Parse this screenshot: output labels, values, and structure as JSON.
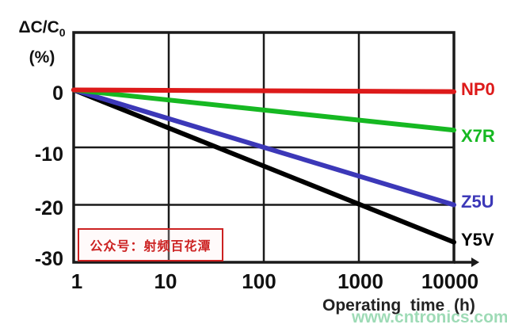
{
  "chart_data": {
    "type": "line",
    "title": "",
    "xlabel": "Operating time (h)",
    "ylabel_title": "ΔC/C",
    "ylabel_sub": "0",
    "ylabel_unit": "(%)",
    "x_scale": "log",
    "xlim": [
      1,
      10000
    ],
    "ylim": [
      -30,
      10
    ],
    "grid": true,
    "grid_x": [
      10,
      100,
      1000
    ],
    "grid_y": [
      -10,
      -20
    ],
    "x_ticks": [
      "1",
      "10",
      "100",
      "1000",
      "10000"
    ],
    "y_ticks": [
      "0",
      "-10",
      "-20",
      "-30"
    ],
    "axis_color": "#1a1a1a",
    "series": [
      {
        "name": "NP0",
        "color": "#dd1a1a",
        "x": [
          1,
          10000
        ],
        "y": [
          0,
          -0.3
        ]
      },
      {
        "name": "X7R",
        "color": "#16b822",
        "x": [
          1,
          10000
        ],
        "y": [
          0,
          -7
        ]
      },
      {
        "name": "Z5U",
        "color": "#3c38b8",
        "x": [
          1,
          10000
        ],
        "y": [
          0,
          -20
        ]
      },
      {
        "name": "Y5V",
        "color": "#000000",
        "x": [
          1,
          10000
        ],
        "y": [
          0,
          -26.5
        ]
      }
    ]
  },
  "stamp": {
    "text": "公众号：射频百花潭",
    "color": "#cc2222"
  },
  "watermark": {
    "text": "www.cntronics.com",
    "color": "#7ecf9e"
  }
}
